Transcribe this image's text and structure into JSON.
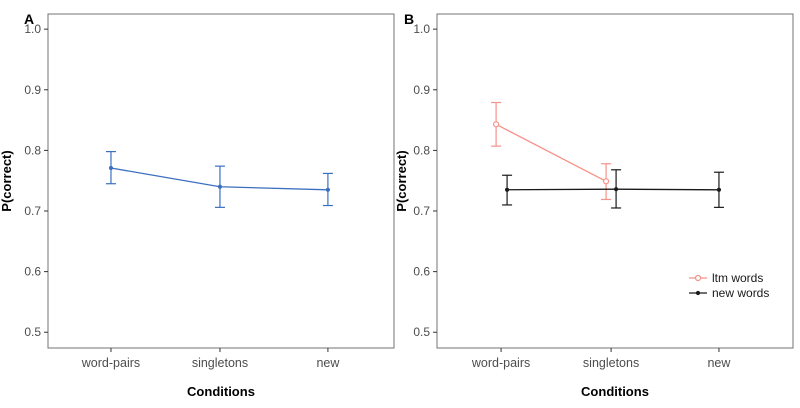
{
  "figure": {
    "background": "#ffffff",
    "panel_border_color": "#737373",
    "tick_color": "#333333",
    "tick_label_color": "#4d4d4d"
  },
  "chart_data": [
    {
      "type": "line",
      "panel_label": "A",
      "xlabel": "Conditions",
      "ylabel": "P(correct)",
      "categories": [
        "word-pairs",
        "singletons",
        "new"
      ],
      "ytick_labels": [
        "1.0",
        "0.9",
        "0.8",
        "0.7",
        "0.6",
        "0.5"
      ],
      "ylim": [
        0.474,
        1.025
      ],
      "grid": false,
      "legend": null,
      "series": [
        {
          "name": "",
          "color": "#3B6FC0",
          "marker": "filled-circle",
          "values": [
            0.771,
            0.74,
            0.735
          ],
          "ci_low": [
            0.745,
            0.706,
            0.709
          ],
          "ci_high": [
            0.798,
            0.774,
            0.762
          ]
        }
      ]
    },
    {
      "type": "line",
      "panel_label": "B",
      "xlabel": "Conditions",
      "ylabel": "P(correct)",
      "categories": [
        "word-pairs",
        "singletons",
        "new"
      ],
      "ytick_labels": [
        "1.0",
        "0.9",
        "0.8",
        "0.7",
        "0.6",
        "0.5"
      ],
      "ylim": [
        0.474,
        1.025
      ],
      "grid": false,
      "legend": {
        "position": "inside-bottom-right"
      },
      "series": [
        {
          "name": "ltm words",
          "color": "#F89187",
          "marker": "open-circle",
          "values": [
            0.843,
            0.749,
            null
          ],
          "ci_low": [
            0.807,
            0.719,
            null
          ],
          "ci_high": [
            0.879,
            0.778,
            null
          ]
        },
        {
          "name": "new words",
          "color": "#1A1A1A",
          "marker": "filled-circle",
          "values": [
            0.735,
            0.736,
            0.735
          ],
          "ci_low": [
            0.71,
            0.705,
            0.706
          ],
          "ci_high": [
            0.759,
            0.768,
            0.764
          ]
        }
      ]
    }
  ]
}
